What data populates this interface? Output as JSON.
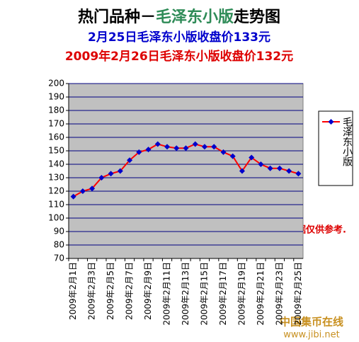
{
  "chart_data": {
    "type": "line",
    "title": [
      "热门品种－",
      "毛泽东小版",
      "走势图"
    ],
    "subtitle": "2月25日毛泽东小版收盘价133元",
    "subtitle2": "2009年2月26日毛泽东小版收盘价132元",
    "annotation": "数据仅供参考.",
    "watermark": [
      "中国集币在线",
      "www.jibi.net"
    ],
    "categories": [
      "2009年2月1日",
      null,
      "2009年2月3日",
      null,
      "2009年2月5日",
      null,
      "2009年2月7日",
      null,
      "2009年2月9日",
      null,
      "2009年2月11日",
      null,
      "2009年2月13日",
      null,
      "2009年2月15日",
      null,
      "2009年2月17日",
      null,
      "2009年2月19日",
      null,
      "2009年2月21日",
      null,
      "2009年2月23日",
      null,
      "2009年2月25日"
    ],
    "series": [
      {
        "name": "毛泽东小版",
        "color": "#ff0000",
        "marker_color": "#0000cc",
        "values": [
          116,
          120,
          122,
          130,
          133,
          135,
          143,
          149,
          151,
          155,
          153,
          152,
          152,
          155,
          153,
          153,
          149,
          146,
          135,
          145,
          140,
          137,
          137,
          135,
          133
        ]
      }
    ],
    "ylim": [
      70,
      200
    ],
    "yticks": [
      70,
      80,
      90,
      100,
      110,
      120,
      130,
      140,
      150,
      160,
      170,
      180,
      190,
      200
    ],
    "grid": true,
    "legend": "right"
  }
}
